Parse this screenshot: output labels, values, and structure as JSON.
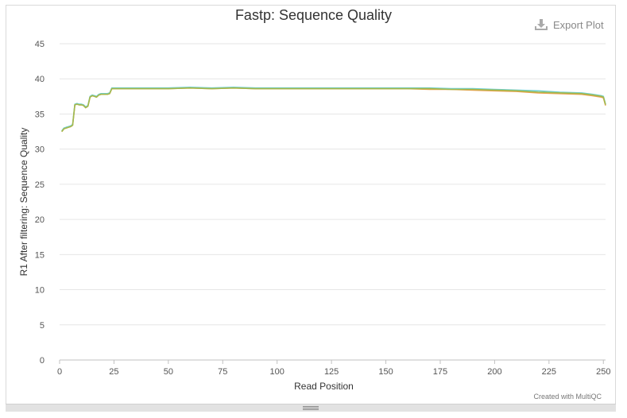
{
  "header": {
    "title": "Fastp: Sequence Quality",
    "export_label": "Export Plot",
    "export_icon": "download-icon"
  },
  "footer": {
    "credit": "Created with MultiQC"
  },
  "chart_data": {
    "type": "line",
    "title": "Fastp: Sequence Quality",
    "xlabel": "Read Position",
    "ylabel": "R1 After filtering: Sequence Quality",
    "xlim": [
      0,
      251
    ],
    "ylim": [
      0,
      45
    ],
    "x_ticks": [
      0,
      25,
      50,
      75,
      100,
      125,
      150,
      175,
      200,
      225,
      250
    ],
    "y_ticks": [
      0,
      5,
      10,
      15,
      20,
      25,
      30,
      35,
      40,
      45
    ],
    "grid": true,
    "series": [
      {
        "color": "#f0a050",
        "points": [
          [
            1,
            32.5
          ],
          [
            2,
            32.9
          ],
          [
            3,
            33.0
          ],
          [
            4,
            33.1
          ],
          [
            5,
            33.2
          ],
          [
            6,
            33.4
          ],
          [
            7,
            36.3
          ],
          [
            8,
            36.4
          ],
          [
            9,
            36.3
          ],
          [
            10,
            36.3
          ],
          [
            11,
            36.2
          ],
          [
            12,
            35.9
          ],
          [
            13,
            36.1
          ],
          [
            14,
            37.4
          ],
          [
            15,
            37.6
          ],
          [
            16,
            37.5
          ],
          [
            17,
            37.4
          ],
          [
            18,
            37.7
          ],
          [
            19,
            37.8
          ],
          [
            20,
            37.8
          ],
          [
            21,
            37.8
          ],
          [
            22,
            37.8
          ],
          [
            23,
            37.9
          ],
          [
            24,
            38.6
          ],
          [
            25,
            38.6
          ],
          [
            30,
            38.6
          ],
          [
            40,
            38.6
          ],
          [
            50,
            38.6
          ],
          [
            60,
            38.7
          ],
          [
            70,
            38.6
          ],
          [
            80,
            38.7
          ],
          [
            90,
            38.6
          ],
          [
            100,
            38.6
          ],
          [
            110,
            38.6
          ],
          [
            120,
            38.6
          ],
          [
            130,
            38.6
          ],
          [
            140,
            38.6
          ],
          [
            150,
            38.6
          ],
          [
            160,
            38.6
          ],
          [
            170,
            38.5
          ],
          [
            180,
            38.5
          ],
          [
            190,
            38.4
          ],
          [
            200,
            38.3
          ],
          [
            210,
            38.2
          ],
          [
            220,
            38.0
          ],
          [
            230,
            37.9
          ],
          [
            240,
            37.8
          ],
          [
            245,
            37.6
          ],
          [
            249,
            37.4
          ],
          [
            250,
            37.3
          ],
          [
            251,
            36.2
          ]
        ]
      },
      {
        "color": "#6fcfd0",
        "points": [
          [
            1,
            32.6
          ],
          [
            2,
            33.0
          ],
          [
            3,
            33.1
          ],
          [
            4,
            33.2
          ],
          [
            5,
            33.3
          ],
          [
            6,
            33.5
          ],
          [
            7,
            36.4
          ],
          [
            8,
            36.5
          ],
          [
            9,
            36.4
          ],
          [
            10,
            36.4
          ],
          [
            11,
            36.3
          ],
          [
            12,
            36.0
          ],
          [
            13,
            36.2
          ],
          [
            14,
            37.5
          ],
          [
            15,
            37.7
          ],
          [
            16,
            37.6
          ],
          [
            17,
            37.5
          ],
          [
            18,
            37.8
          ],
          [
            19,
            37.9
          ],
          [
            20,
            37.9
          ],
          [
            21,
            37.9
          ],
          [
            22,
            37.9
          ],
          [
            23,
            38.0
          ],
          [
            24,
            38.7
          ],
          [
            25,
            38.7
          ],
          [
            30,
            38.7
          ],
          [
            40,
            38.7
          ],
          [
            50,
            38.7
          ],
          [
            60,
            38.8
          ],
          [
            70,
            38.7
          ],
          [
            80,
            38.8
          ],
          [
            90,
            38.7
          ],
          [
            100,
            38.7
          ],
          [
            110,
            38.7
          ],
          [
            120,
            38.7
          ],
          [
            130,
            38.7
          ],
          [
            140,
            38.7
          ],
          [
            150,
            38.7
          ],
          [
            160,
            38.7
          ],
          [
            170,
            38.7
          ],
          [
            180,
            38.6
          ],
          [
            190,
            38.6
          ],
          [
            200,
            38.5
          ],
          [
            210,
            38.4
          ],
          [
            220,
            38.3
          ],
          [
            230,
            38.1
          ],
          [
            240,
            38.0
          ],
          [
            245,
            37.8
          ],
          [
            249,
            37.6
          ],
          [
            250,
            37.5
          ],
          [
            251,
            36.4
          ]
        ]
      },
      {
        "color": "#a6b84a",
        "points": [
          [
            1,
            32.5
          ],
          [
            2,
            32.9
          ],
          [
            3,
            33.0
          ],
          [
            4,
            33.1
          ],
          [
            5,
            33.2
          ],
          [
            6,
            33.4
          ],
          [
            7,
            36.3
          ],
          [
            8,
            36.4
          ],
          [
            9,
            36.3
          ],
          [
            10,
            36.3
          ],
          [
            11,
            36.2
          ],
          [
            12,
            35.9
          ],
          [
            13,
            36.1
          ],
          [
            14,
            37.4
          ],
          [
            15,
            37.6
          ],
          [
            16,
            37.5
          ],
          [
            17,
            37.4
          ],
          [
            18,
            37.7
          ],
          [
            19,
            37.8
          ],
          [
            20,
            37.8
          ],
          [
            21,
            37.8
          ],
          [
            22,
            37.8
          ],
          [
            23,
            37.9
          ],
          [
            24,
            38.6
          ],
          [
            25,
            38.6
          ],
          [
            30,
            38.6
          ],
          [
            40,
            38.6
          ],
          [
            50,
            38.6
          ],
          [
            60,
            38.7
          ],
          [
            70,
            38.6
          ],
          [
            80,
            38.7
          ],
          [
            90,
            38.6
          ],
          [
            100,
            38.6
          ],
          [
            110,
            38.6
          ],
          [
            120,
            38.6
          ],
          [
            130,
            38.6
          ],
          [
            140,
            38.6
          ],
          [
            150,
            38.6
          ],
          [
            160,
            38.6
          ],
          [
            170,
            38.6
          ],
          [
            180,
            38.5
          ],
          [
            190,
            38.5
          ],
          [
            200,
            38.4
          ],
          [
            210,
            38.3
          ],
          [
            220,
            38.1
          ],
          [
            230,
            38.0
          ],
          [
            240,
            37.9
          ],
          [
            245,
            37.7
          ],
          [
            249,
            37.5
          ],
          [
            250,
            37.4
          ],
          [
            251,
            36.3
          ]
        ]
      }
    ]
  }
}
